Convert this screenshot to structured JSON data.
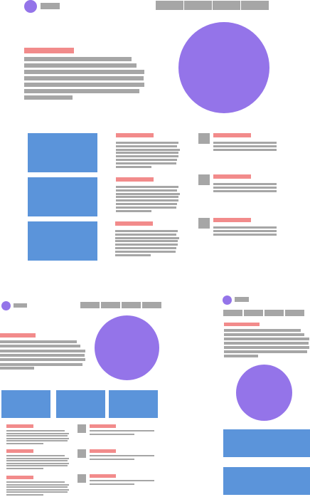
{
  "colors": {
    "background": "#ffffff",
    "grey": "#a6a6a6",
    "pink": "#f28b8b",
    "blue": "#5b94da",
    "purple": "#9474e9"
  },
  "wireframes": [
    {
      "name": "desktop-layout",
      "nav_items": 4,
      "cards": 3,
      "list_items": 3
    },
    {
      "name": "tablet-layout",
      "nav_items": 4,
      "cards": 3,
      "list_items": 3
    },
    {
      "name": "mobile-layout",
      "nav_items": 4,
      "cards": 2,
      "list_items": 0
    }
  ]
}
